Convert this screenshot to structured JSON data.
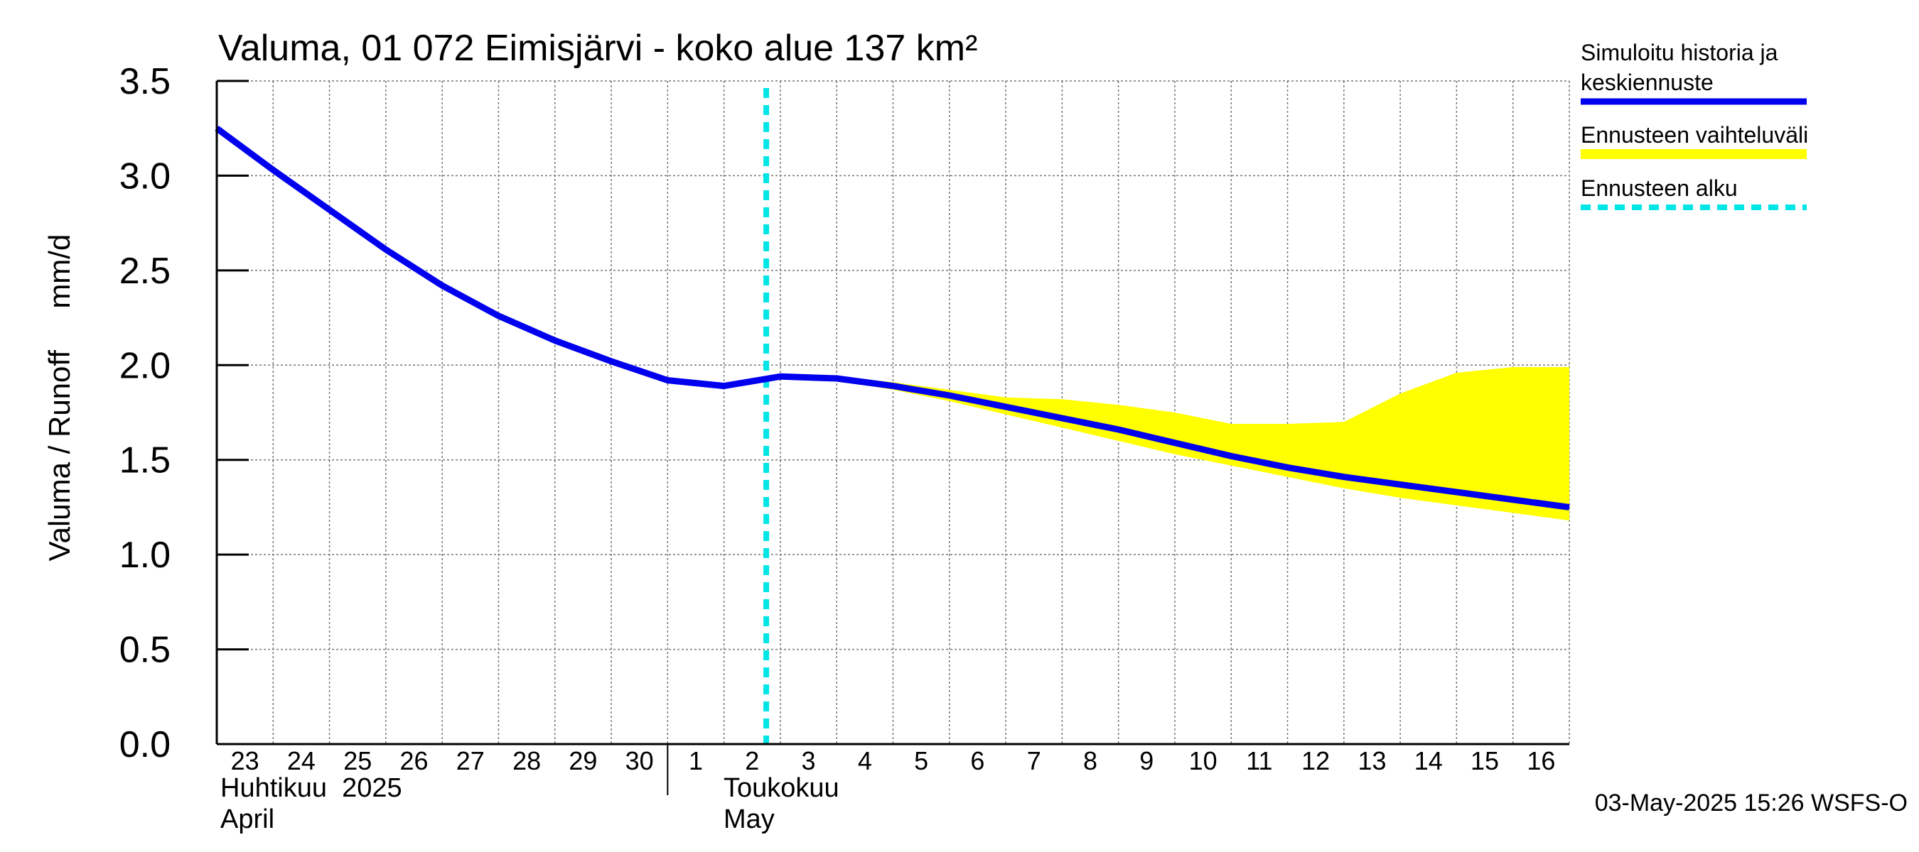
{
  "chart_data": {
    "type": "line",
    "title": "Valuma, 01 072 Eimisjärvi - koko alue 137 km²",
    "ylabel": "Valuma / Runoff     mm/d",
    "ylim": [
      0,
      3.5
    ],
    "yticks": [
      "0.0",
      "0.5",
      "1.0",
      "1.5",
      "2.0",
      "2.5",
      "3.0",
      "3.5"
    ],
    "x_start": "2025-04-23",
    "x_end": "2025-05-17",
    "day_labels": [
      "23",
      "24",
      "25",
      "26",
      "27",
      "28",
      "29",
      "30",
      "1",
      "2",
      "3",
      "4",
      "5",
      "6",
      "7",
      "8",
      "9",
      "10",
      "11",
      "12",
      "13",
      "14",
      "15",
      "16"
    ],
    "months": [
      {
        "line1": "Huhtikuu  2025",
        "line2": "April"
      },
      {
        "line1": "Toukokuu",
        "line2": "May"
      }
    ],
    "forecast_start": "2025-05-02T18:00",
    "series": [
      {
        "name": "Simuloitu historia ja keskiennuste",
        "color": "#0000ee",
        "x": [
          "2025-04-23",
          "2025-04-24",
          "2025-04-25",
          "2025-04-26",
          "2025-04-27",
          "2025-04-28",
          "2025-04-29",
          "2025-04-30",
          "2025-05-01",
          "2025-05-02",
          "2025-05-03",
          "2025-05-04",
          "2025-05-05",
          "2025-05-06",
          "2025-05-07",
          "2025-05-08",
          "2025-05-09",
          "2025-05-10",
          "2025-05-11",
          "2025-05-12",
          "2025-05-13",
          "2025-05-14",
          "2025-05-15",
          "2025-05-16",
          "2025-05-17"
        ],
        "values": [
          3.25,
          3.03,
          2.82,
          2.61,
          2.42,
          2.26,
          2.13,
          2.02,
          1.92,
          1.89,
          1.94,
          1.93,
          1.89,
          1.84,
          1.78,
          1.72,
          1.66,
          1.59,
          1.52,
          1.46,
          1.41,
          1.37,
          1.33,
          1.29,
          1.25
        ]
      },
      {
        "name": "Ennusteen vaihteluväli",
        "color": "#ffff00",
        "x": [
          "2025-05-03",
          "2025-05-04",
          "2025-05-05",
          "2025-05-06",
          "2025-05-07",
          "2025-05-08",
          "2025-05-09",
          "2025-05-10",
          "2025-05-11",
          "2025-05-12",
          "2025-05-13",
          "2025-05-14",
          "2025-05-15",
          "2025-05-16",
          "2025-05-17"
        ],
        "upper": [
          1.94,
          1.94,
          1.91,
          1.87,
          1.83,
          1.82,
          1.79,
          1.75,
          1.69,
          1.69,
          1.7,
          1.85,
          1.96,
          1.99,
          1.99
        ],
        "lower": [
          1.94,
          1.92,
          1.87,
          1.81,
          1.74,
          1.67,
          1.6,
          1.53,
          1.47,
          1.41,
          1.35,
          1.3,
          1.26,
          1.22,
          1.18
        ]
      },
      {
        "name": "Ennusteen alku",
        "color": "#00e5e5"
      }
    ],
    "legend_position": "top-right",
    "grid": true,
    "footer": "03-May-2025 15:26 WSFS-O"
  }
}
